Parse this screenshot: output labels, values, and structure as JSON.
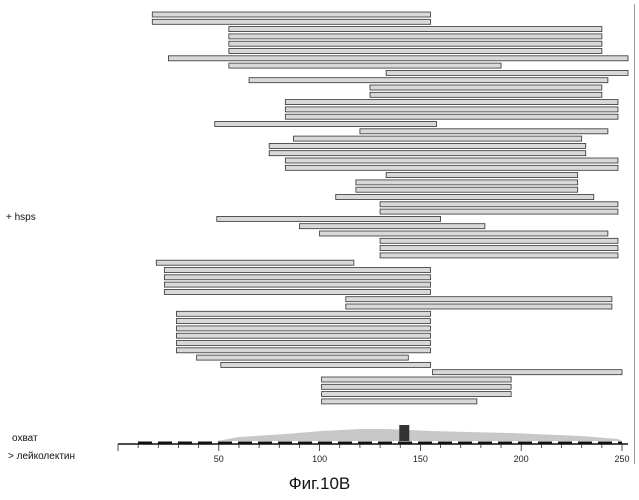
{
  "labels": {
    "hsps": "+ hsps",
    "coverage": "охват",
    "gene": "> лейколектин",
    "caption": "Фиг.10B"
  },
  "chart_data": {
    "type": "alignment-tracks",
    "x_ticks": [
      50,
      100,
      150,
      200,
      250
    ],
    "x_range": [
      0,
      250
    ],
    "hsps": [
      [
        17,
        155
      ],
      [
        17,
        155
      ],
      [
        55,
        240
      ],
      [
        55,
        240
      ],
      [
        55,
        240
      ],
      [
        55,
        240
      ],
      [
        25,
        255
      ],
      [
        55,
        190
      ],
      [
        133,
        255
      ],
      [
        65,
        243
      ],
      [
        125,
        240
      ],
      [
        125,
        240
      ],
      [
        83,
        248
      ],
      [
        83,
        248
      ],
      [
        83,
        248
      ],
      [
        48,
        158
      ],
      [
        120,
        243
      ],
      [
        87,
        230
      ],
      [
        75,
        232
      ],
      [
        75,
        232
      ],
      [
        83,
        248
      ],
      [
        83,
        248
      ],
      [
        133,
        228
      ],
      [
        118,
        228
      ],
      [
        118,
        228
      ],
      [
        108,
        236
      ],
      [
        130,
        248
      ],
      [
        130,
        248
      ],
      [
        49,
        160
      ],
      [
        90,
        182
      ],
      [
        100,
        243
      ],
      [
        130,
        248
      ],
      [
        130,
        248
      ],
      [
        130,
        248
      ],
      [
        19,
        117
      ],
      [
        23,
        155
      ],
      [
        23,
        155
      ],
      [
        23,
        155
      ],
      [
        23,
        155
      ],
      [
        113,
        245
      ],
      [
        113,
        245
      ],
      [
        29,
        155
      ],
      [
        29,
        155
      ],
      [
        29,
        155
      ],
      [
        29,
        155
      ],
      [
        29,
        155
      ],
      [
        29,
        155
      ],
      [
        39,
        144
      ],
      [
        51,
        155
      ],
      [
        156,
        250
      ],
      [
        101,
        195
      ],
      [
        101,
        195
      ],
      [
        101,
        195
      ],
      [
        101,
        178
      ]
    ],
    "coverage_marker": 142
  }
}
